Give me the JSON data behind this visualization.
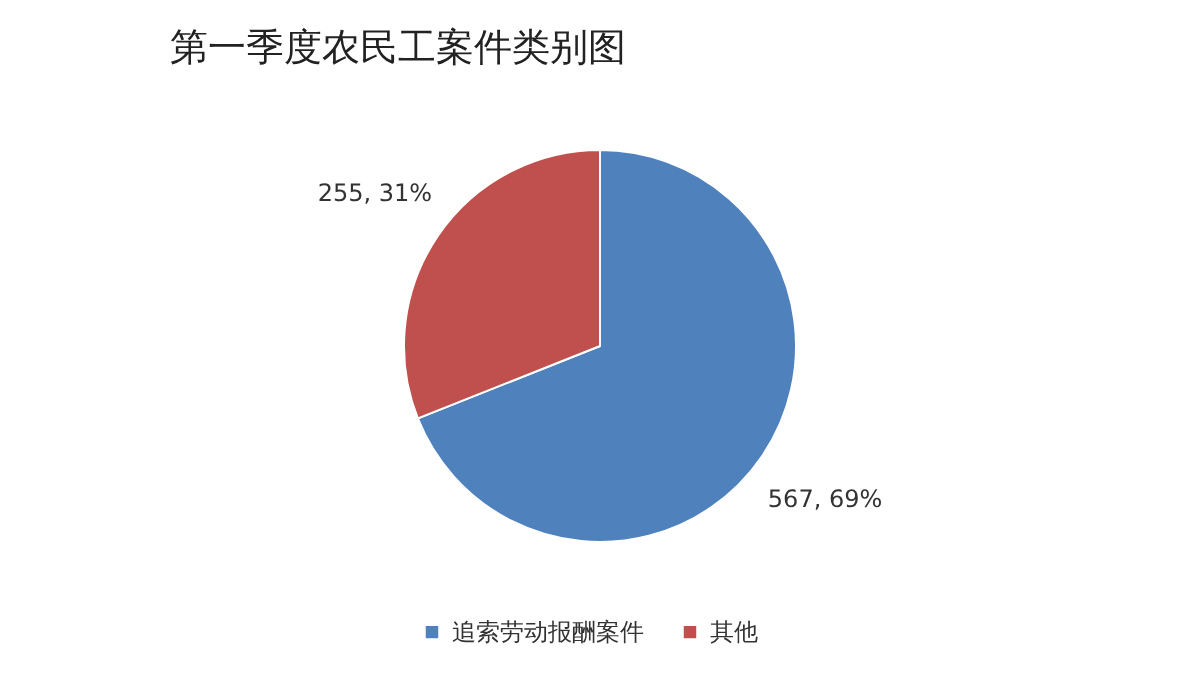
{
  "chart_data": {
    "type": "pie",
    "title": "第一季度农民工案件类别图",
    "categories": [
      "追索劳动报酬案件",
      "其他"
    ],
    "values": [
      567,
      255
    ],
    "colors": [
      "#4f81bd",
      "#c0504d"
    ],
    "value_labels": [
      "567, 69%",
      "255, 31%"
    ],
    "legend": "bottom"
  }
}
